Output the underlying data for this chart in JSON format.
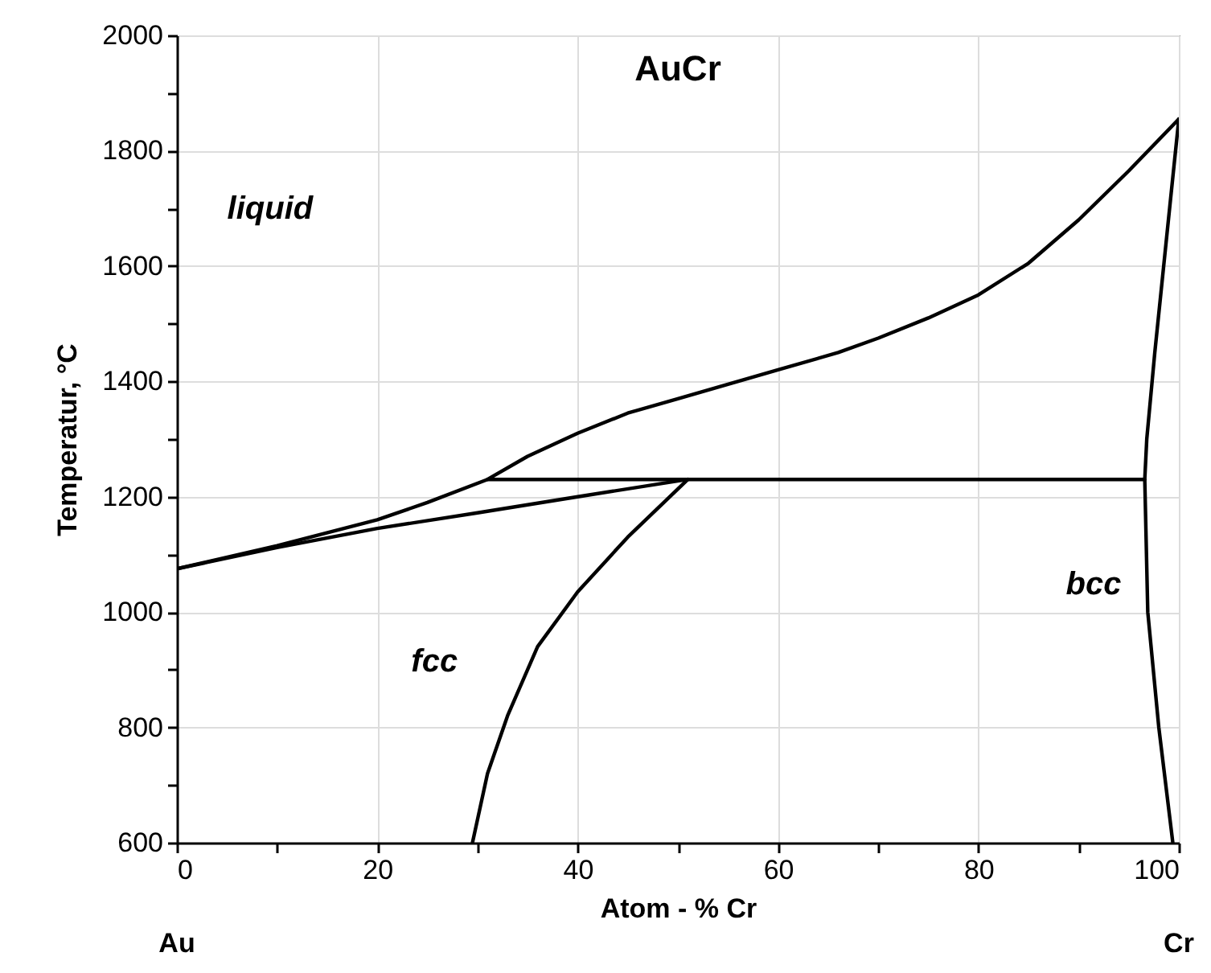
{
  "chart_data": {
    "type": "line",
    "title": "AuCr",
    "xlabel": "Atom - % Cr",
    "ylabel": "Temperatur, °C",
    "xlim": [
      0,
      100
    ],
    "ylim": [
      600,
      2000
    ],
    "xticks": [
      0,
      {
        "value": 10,
        "label": null
      },
      20,
      {
        "value": 30,
        "label": null
      },
      40,
      {
        "value": 50,
        "label": null
      },
      60,
      {
        "value": 70,
        "label": null
      },
      80,
      {
        "value": 90,
        "label": null
      },
      100
    ],
    "yticks": [
      600,
      {
        "value": 700,
        "label": null
      },
      800,
      {
        "value": 900,
        "label": null
      },
      1000,
      {
        "value": 1100,
        "label": null
      },
      1200,
      {
        "value": 1300,
        "label": null
      },
      1400,
      {
        "value": 1500,
        "label": null
      },
      1600,
      {
        "value": 1700,
        "label": null
      },
      1800,
      {
        "value": 1900,
        "label": null
      },
      2000
    ],
    "grid": true,
    "legend": false,
    "line_style": "solid",
    "series": [
      {
        "color": "#000000",
        "x": [
          0,
          10,
          20,
          25,
          31,
          35,
          40,
          45,
          50,
          55,
          60,
          66,
          70,
          75,
          80,
          85,
          90,
          95,
          100
        ],
        "values": [
          1075,
          1115,
          1160,
          1190,
          1230,
          1270,
          1310,
          1345,
          1370,
          1395,
          1420,
          1450,
          1475,
          1510,
          1550,
          1605,
          1680,
          1765,
          1855
        ]
      },
      {
        "color": "#000000",
        "x": [
          0,
          10,
          20,
          30,
          40,
          51
        ],
        "values": [
          1075,
          1112,
          1145,
          1172,
          1200,
          1230
        ]
      },
      {
        "color": "#000000",
        "x": [
          51,
          45,
          40,
          36,
          33,
          31,
          29.5
        ],
        "values": [
          1230,
          1130,
          1035,
          940,
          820,
          720,
          600
        ]
      },
      {
        "color": "#000000",
        "x": [
          31,
          96.6
        ],
        "values": [
          1230,
          1230
        ]
      },
      {
        "color": "#000000",
        "x": [
          100,
          98.9,
          97.6,
          96.8,
          96.6,
          96.9,
          98,
          99.4
        ],
        "values": [
          1855,
          1670,
          1450,
          1300,
          1230,
          1000,
          800,
          600
        ]
      }
    ],
    "annotations": [
      "liquid",
      "fcc",
      "bcc",
      "Au",
      "Cr"
    ]
  }
}
